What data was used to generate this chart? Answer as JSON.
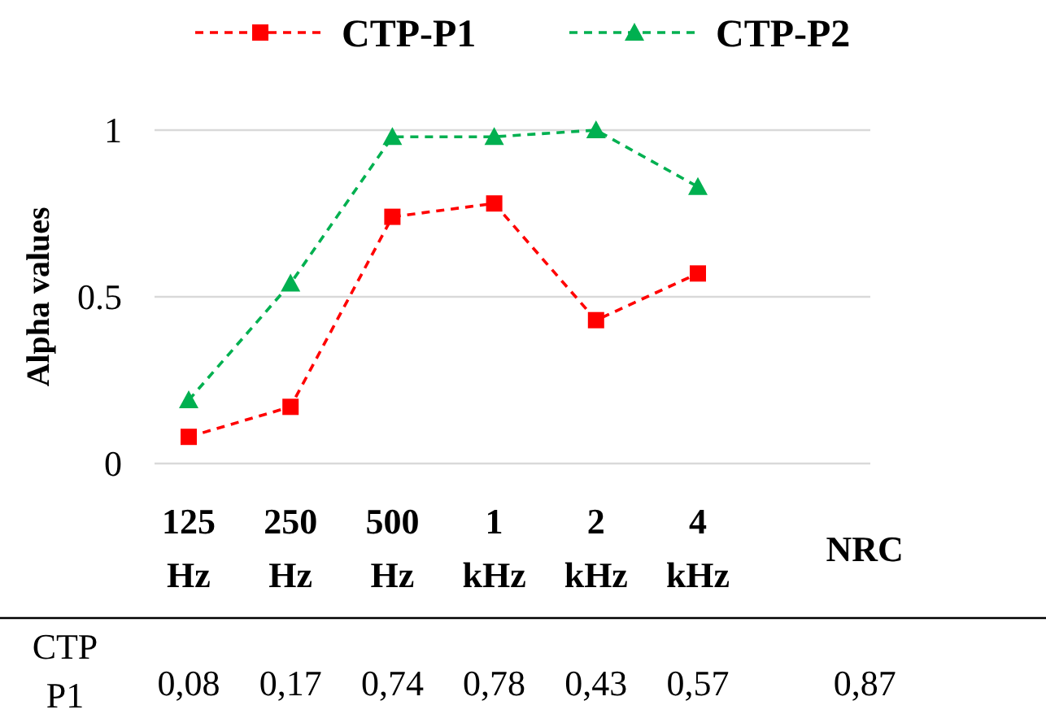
{
  "chart_data": {
    "type": "line",
    "ylabel": "Alpha values",
    "categories": [
      "125 Hz",
      "250 Hz",
      "500 Hz",
      "1 kHz",
      "2 kHz",
      "4 kHz",
      "NRC"
    ],
    "ylim": [
      0,
      1
    ],
    "yticks": [
      0,
      0.5,
      1
    ],
    "grid": "y",
    "legend": "top",
    "series": [
      {
        "name": "CTP-P1",
        "color": "#ff0000",
        "marker": "square",
        "line_style": "dashed",
        "values": [
          0.08,
          0.17,
          0.74,
          0.78,
          0.43,
          0.57,
          null
        ],
        "value_labels": [
          "0,08",
          "0,17",
          "0,74",
          "0,78",
          "0,43",
          "0,57",
          "0,87"
        ]
      },
      {
        "name": "CTP-P2",
        "color": "#00b050",
        "marker": "triangle",
        "line_style": "dashed",
        "values": [
          0.19,
          0.54,
          0.98,
          0.98,
          1.0,
          0.83,
          null
        ]
      }
    ],
    "annotations": [
      "CTP P1"
    ]
  }
}
